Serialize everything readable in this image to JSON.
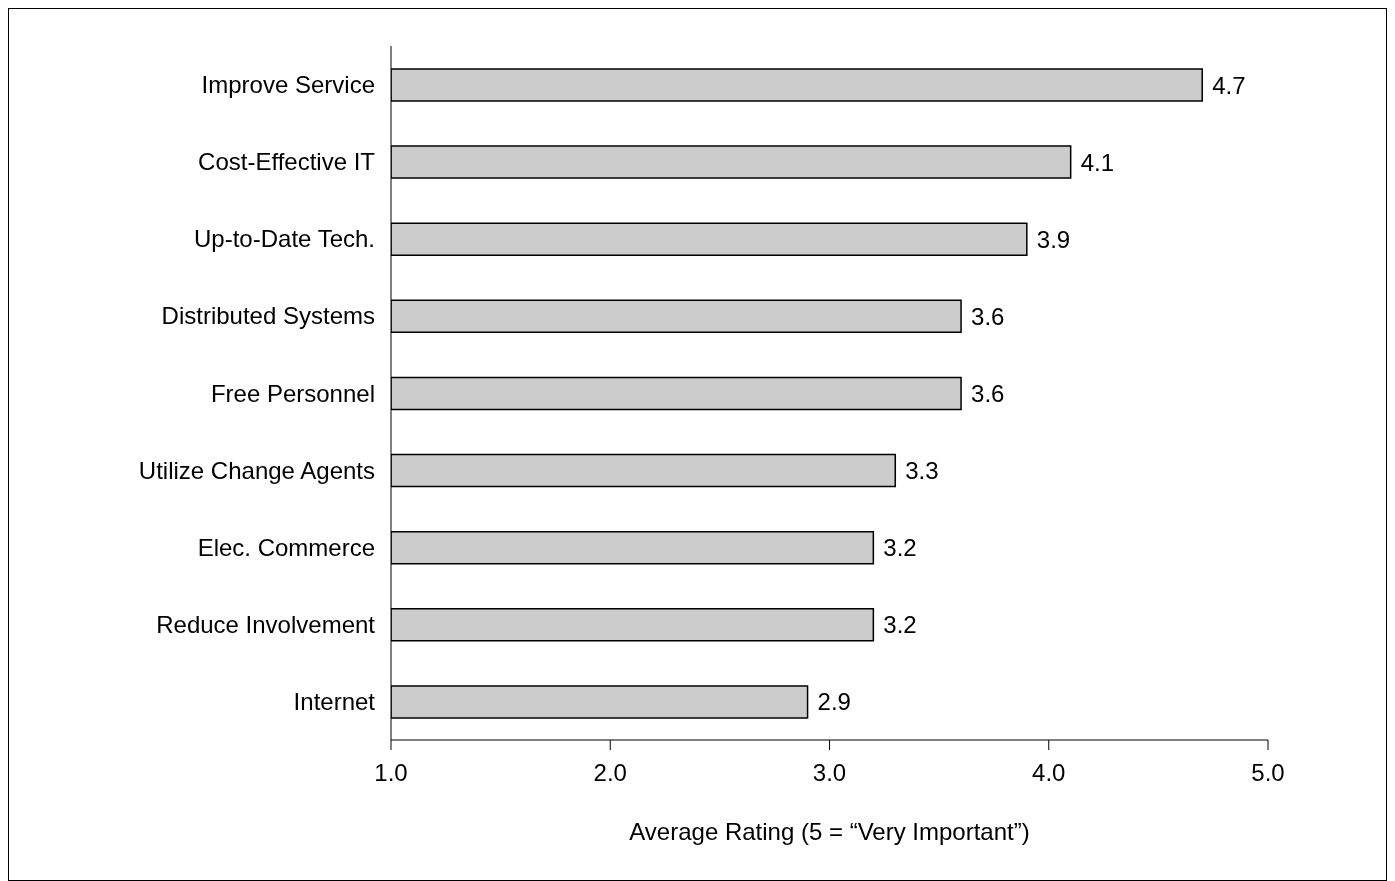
{
  "chart_data": {
    "type": "bar",
    "orientation": "horizontal",
    "xlabel": "Average Rating (5 = “Very Important”)",
    "categories": [
      "Improve Service",
      "Cost-Effective IT",
      "Up-to-Date Tech.",
      "Distributed Systems",
      "Free Personnel",
      "Utilize Change Agents",
      "Elec. Commerce",
      "Reduce Involvement",
      "Internet"
    ],
    "values": [
      4.7,
      4.1,
      3.9,
      3.6,
      3.6,
      3.3,
      3.2,
      3.2,
      2.9
    ],
    "color": "#cccccc",
    "xlim": [
      1,
      5
    ],
    "xticks": [
      {
        "value": 1,
        "label": "1.0"
      },
      {
        "value": 2,
        "label": "2.0"
      },
      {
        "value": 3,
        "label": "3.0"
      },
      {
        "value": 4,
        "label": "4.0"
      },
      {
        "value": 5,
        "label": "5.0"
      }
    ],
    "data_labels": true,
    "grid": false,
    "legend": false
  }
}
